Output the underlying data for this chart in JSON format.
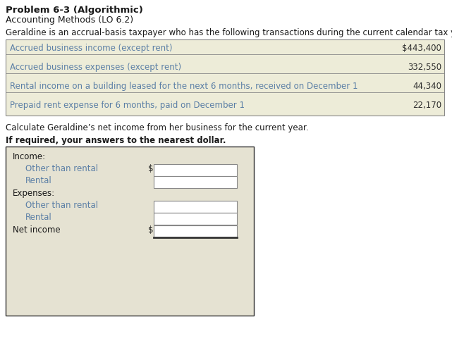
{
  "title": "Problem 6-3 (Algorithmic)",
  "subtitle": "Accounting Methods (LO 6.2)",
  "intro_text": "Geraldine is an accrual-basis taxpayer who has the following transactions during the current calendar tax year:",
  "table_rows": [
    {
      "label": "Accrued business income (except rent)",
      "value": "$443,400"
    },
    {
      "label": "Accrued business expenses (except rent)",
      "value": "332,550"
    },
    {
      "label": "Rental income on a building leased for the next 6 months, received on December 1",
      "value": "44,340"
    },
    {
      "label": "Prepaid rent expense for 6 months, paid on December 1",
      "value": "22,170"
    }
  ],
  "calculate_text": "Calculate Geraldine’s net income from her business for the current year.",
  "bold_instruction": "If required, your answers to the nearest dollar.",
  "table_bg": "#edecd8",
  "form_bg": "#e5e2d2",
  "text_color": "#2c2c2c",
  "teal_color": "#5b7fa6",
  "border_color": "#888888",
  "title_color": "#1a1a1a",
  "dark_border": "#333333"
}
